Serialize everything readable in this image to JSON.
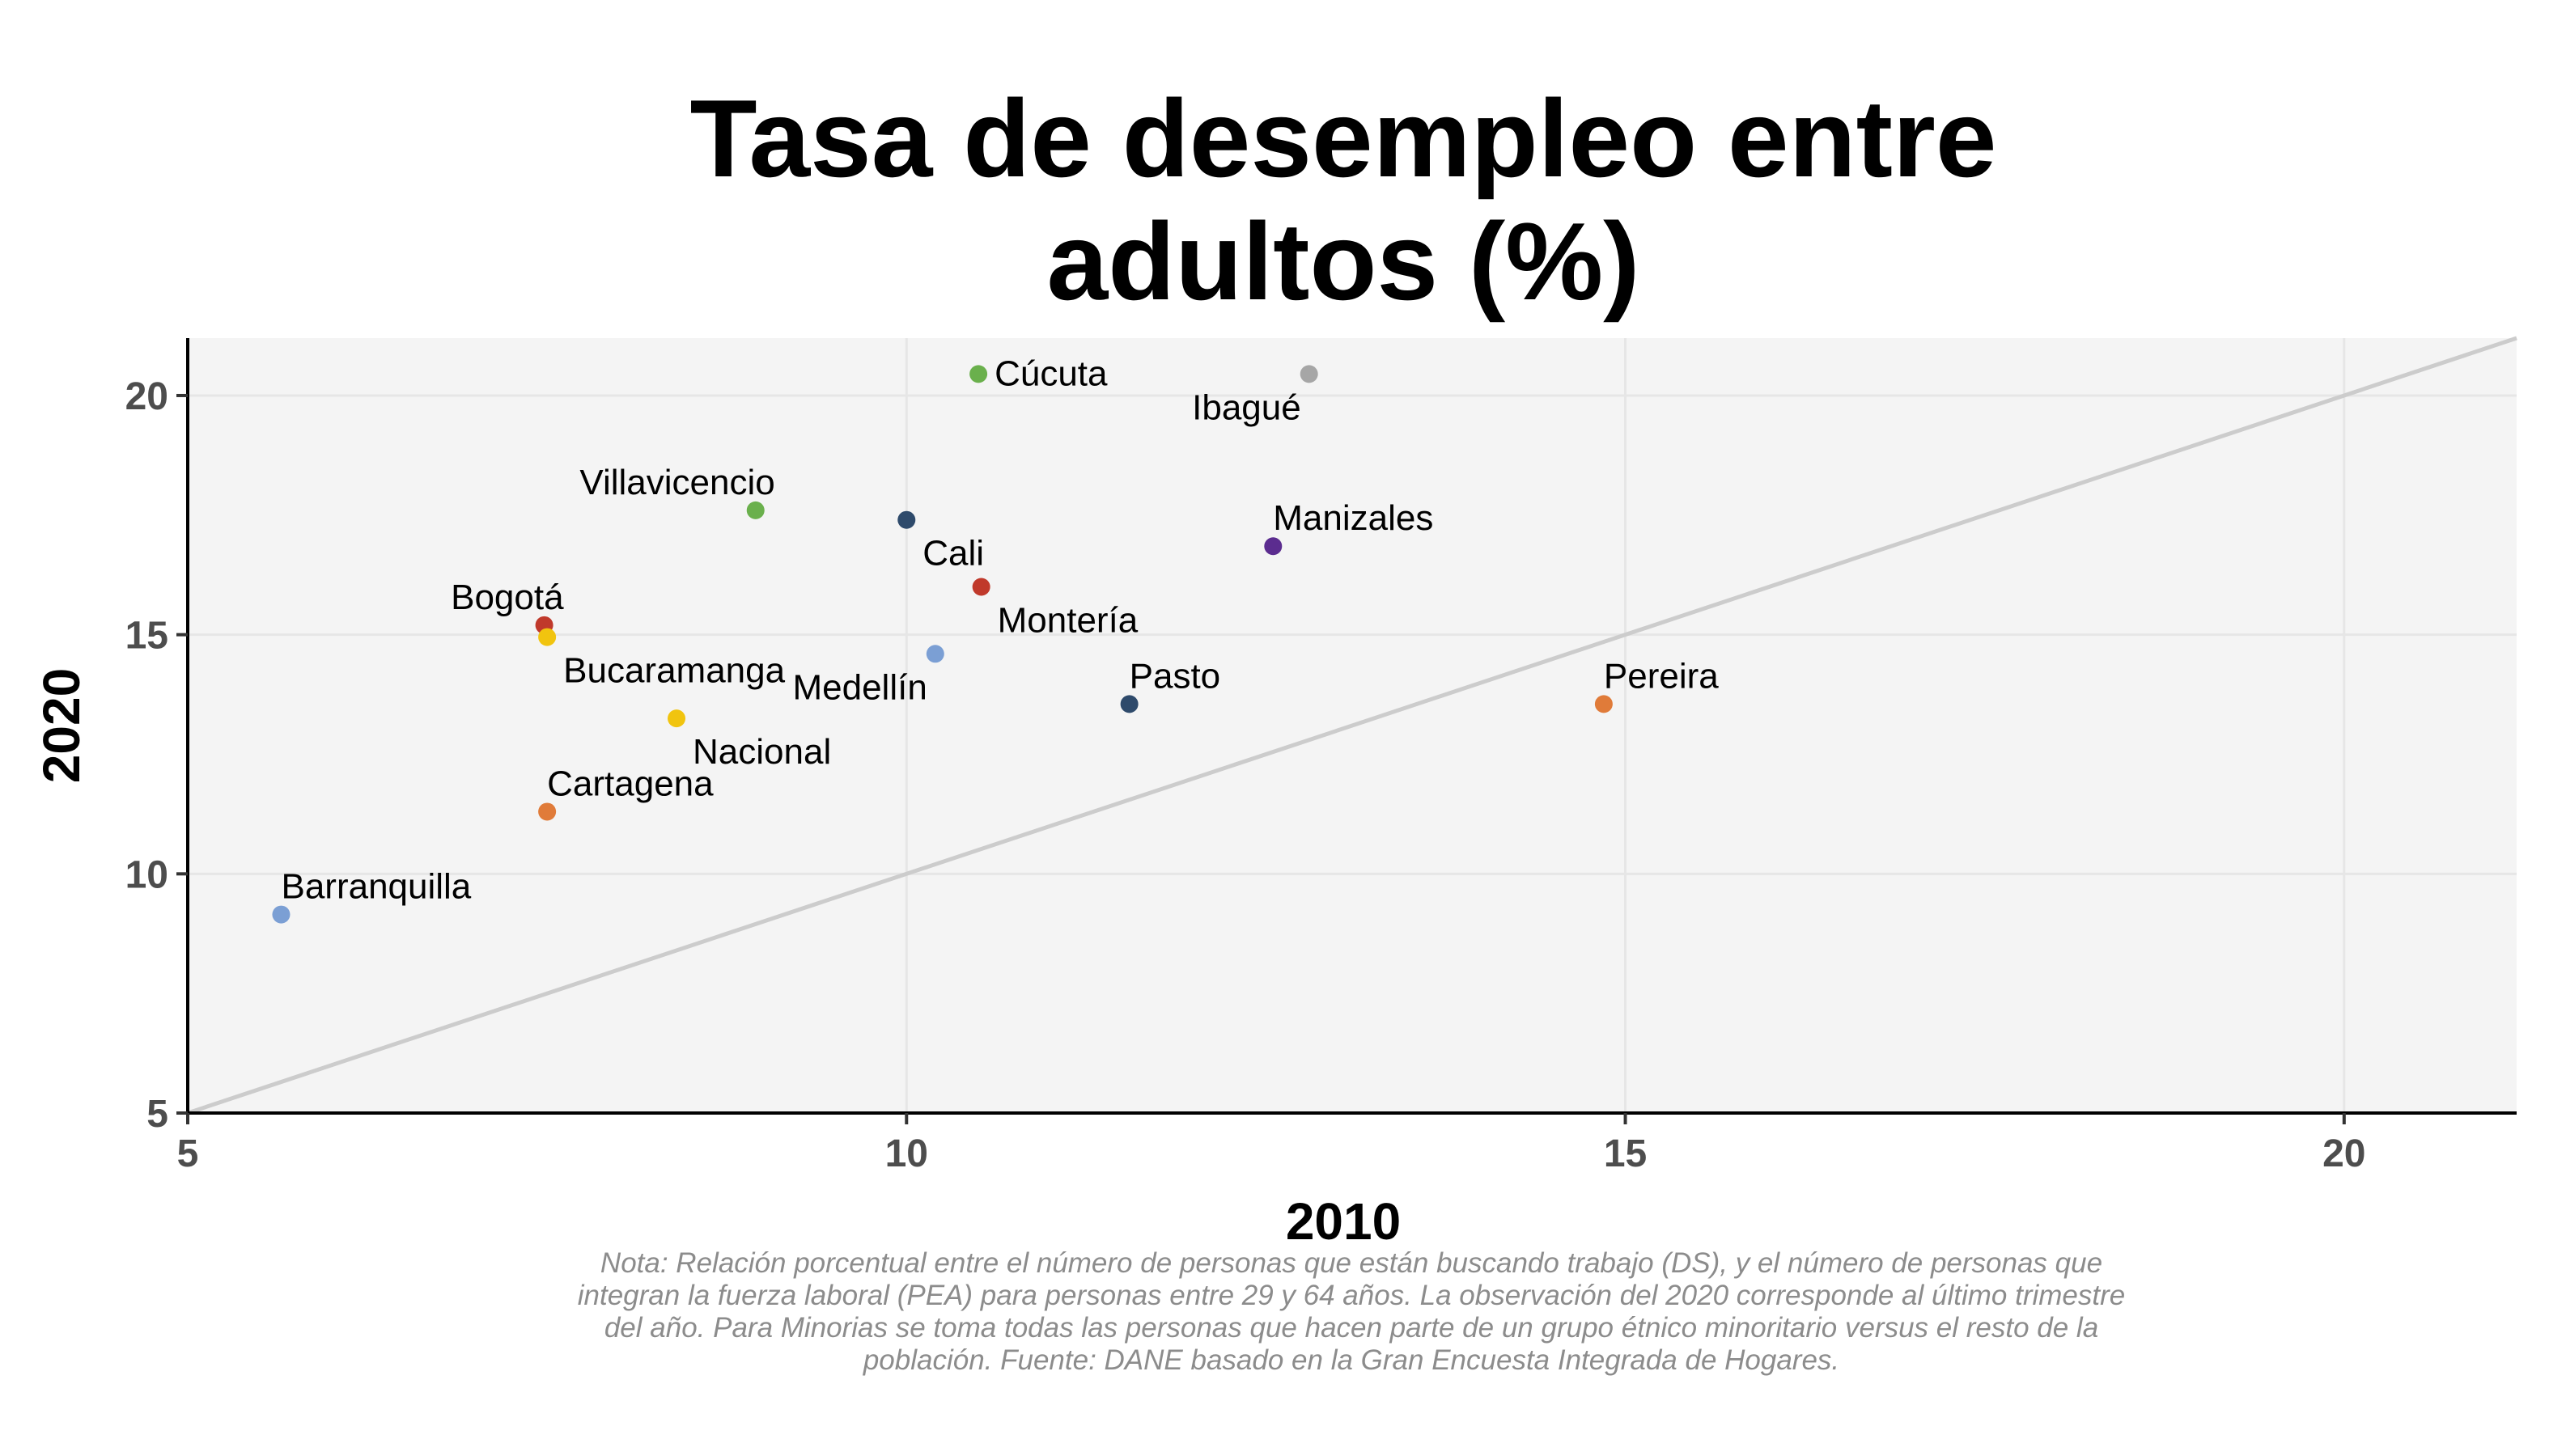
{
  "chart_data": {
    "type": "scatter",
    "title_lines": [
      "Tasa de desempleo entre",
      "adultos (%)"
    ],
    "xlabel": "2010",
    "ylabel": "2020",
    "xlim": [
      5,
      21.2
    ],
    "ylim": [
      5,
      21.2
    ],
    "x_ticks": [
      5,
      10,
      15,
      20
    ],
    "y_ticks": [
      5,
      10,
      15,
      20
    ],
    "grid": true,
    "reference_line": "y = x",
    "points": [
      {
        "label": "Cúcuta",
        "x": 10.5,
        "y": 20.45,
        "color": "#6ab04c",
        "label_pos": "right"
      },
      {
        "label": "Ibagué",
        "x": 12.8,
        "y": 20.45,
        "color": "#a6a6a6",
        "label_pos": "below-left"
      },
      {
        "label": "Villavicencio",
        "x": 8.95,
        "y": 17.6,
        "color": "#6ab04c",
        "label_pos": "above-left"
      },
      {
        "label": "Cali",
        "x": 10.0,
        "y": 17.4,
        "color": "#2e4a6b",
        "label_pos": "below-right"
      },
      {
        "label": "Manizales",
        "x": 12.55,
        "y": 16.85,
        "color": "#5b2c8f",
        "label_pos": "above-right"
      },
      {
        "label": "Montería",
        "x": 10.52,
        "y": 16.0,
        "color": "#c0392b",
        "label_pos": "below-right"
      },
      {
        "label": "Bogotá",
        "x": 7.48,
        "y": 15.2,
        "color": "#c0392b",
        "label_pos": "above-left"
      },
      {
        "label": "Bucaramanga",
        "x": 7.5,
        "y": 14.95,
        "color": "#f1c40f",
        "label_pos": "below-right"
      },
      {
        "label": "Medellín",
        "x": 10.2,
        "y": 14.6,
        "color": "#7b9fd4",
        "label_pos": "below-left"
      },
      {
        "label": "Pasto",
        "x": 11.55,
        "y": 13.55,
        "color": "#2e4a6b",
        "label_pos": "above-right"
      },
      {
        "label": "Pereira",
        "x": 14.85,
        "y": 13.55,
        "color": "#e07b39",
        "label_pos": "above-right"
      },
      {
        "label": "Nacional",
        "x": 8.4,
        "y": 13.25,
        "color": "#f1c40f",
        "label_pos": "below-right"
      },
      {
        "label": "Cartagena",
        "x": 7.5,
        "y": 11.3,
        "color": "#e07b39",
        "label_pos": "above-right"
      },
      {
        "label": "Barranquilla",
        "x": 5.65,
        "y": 9.15,
        "color": "#7b9fd4",
        "label_pos": "above-right"
      }
    ],
    "note": "Nota: Relación porcentual entre el número de personas que están buscando trabajo (DS), y el número de personas que integran la fuerza laboral (PEA) para personas entre 29 y 64 años. La observación del 2020 corresponde al último trimestre del año. Para Minorias se toma todas las personas que hacen parte de un grupo étnico minoritario versus el resto de la población. Fuente: DANE basado en la Gran Encuesta Integrada de Hogares."
  }
}
